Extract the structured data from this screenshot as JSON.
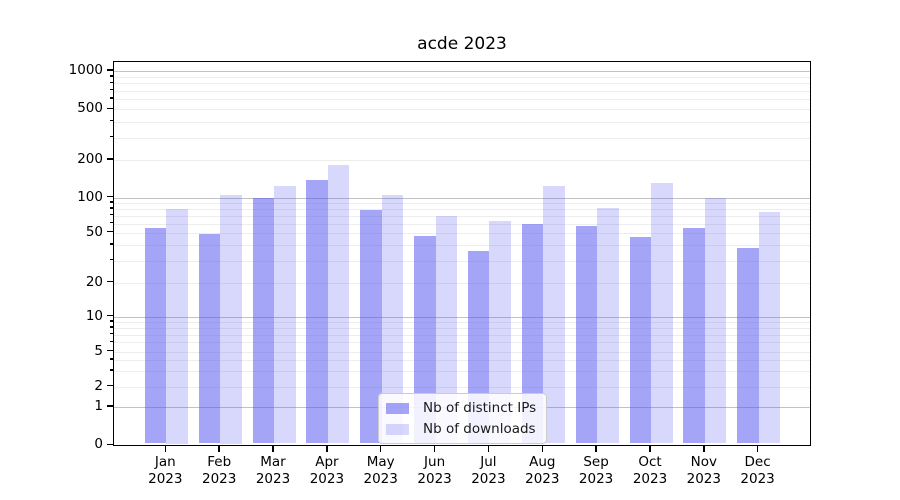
{
  "chart_data": {
    "type": "bar",
    "title": "acde 2023",
    "categories": [
      {
        "month": "Jan",
        "year": "2023"
      },
      {
        "month": "Feb",
        "year": "2023"
      },
      {
        "month": "Mar",
        "year": "2023"
      },
      {
        "month": "Apr",
        "year": "2023"
      },
      {
        "month": "May",
        "year": "2023"
      },
      {
        "month": "Jun",
        "year": "2023"
      },
      {
        "month": "Jul",
        "year": "2023"
      },
      {
        "month": "Aug",
        "year": "2023"
      },
      {
        "month": "Sep",
        "year": "2023"
      },
      {
        "month": "Oct",
        "year": "2023"
      },
      {
        "month": "Nov",
        "year": "2023"
      },
      {
        "month": "Dec",
        "year": "2023"
      }
    ],
    "series": [
      {
        "name": "Nb of distinct IPs",
        "color": "#5555f0",
        "alpha": 0.53,
        "values": [
          55,
          49,
          100,
          138,
          78,
          47,
          36,
          60,
          57,
          46,
          55,
          38
        ]
      },
      {
        "name": "Nb of downloads",
        "color": "#5555f0",
        "alpha": 0.23,
        "values": [
          80,
          106,
          125,
          183,
          105,
          70,
          63,
          125,
          82,
          132,
          100,
          76
        ]
      }
    ],
    "yscale": "symlog",
    "ylim": [
      0,
      1000
    ],
    "yticks": [
      0,
      1,
      2,
      5,
      10,
      20,
      50,
      100,
      200,
      500,
      1000
    ],
    "grid": "horizontal",
    "legend_position": "lower center",
    "xlabel": "",
    "ylabel": ""
  }
}
